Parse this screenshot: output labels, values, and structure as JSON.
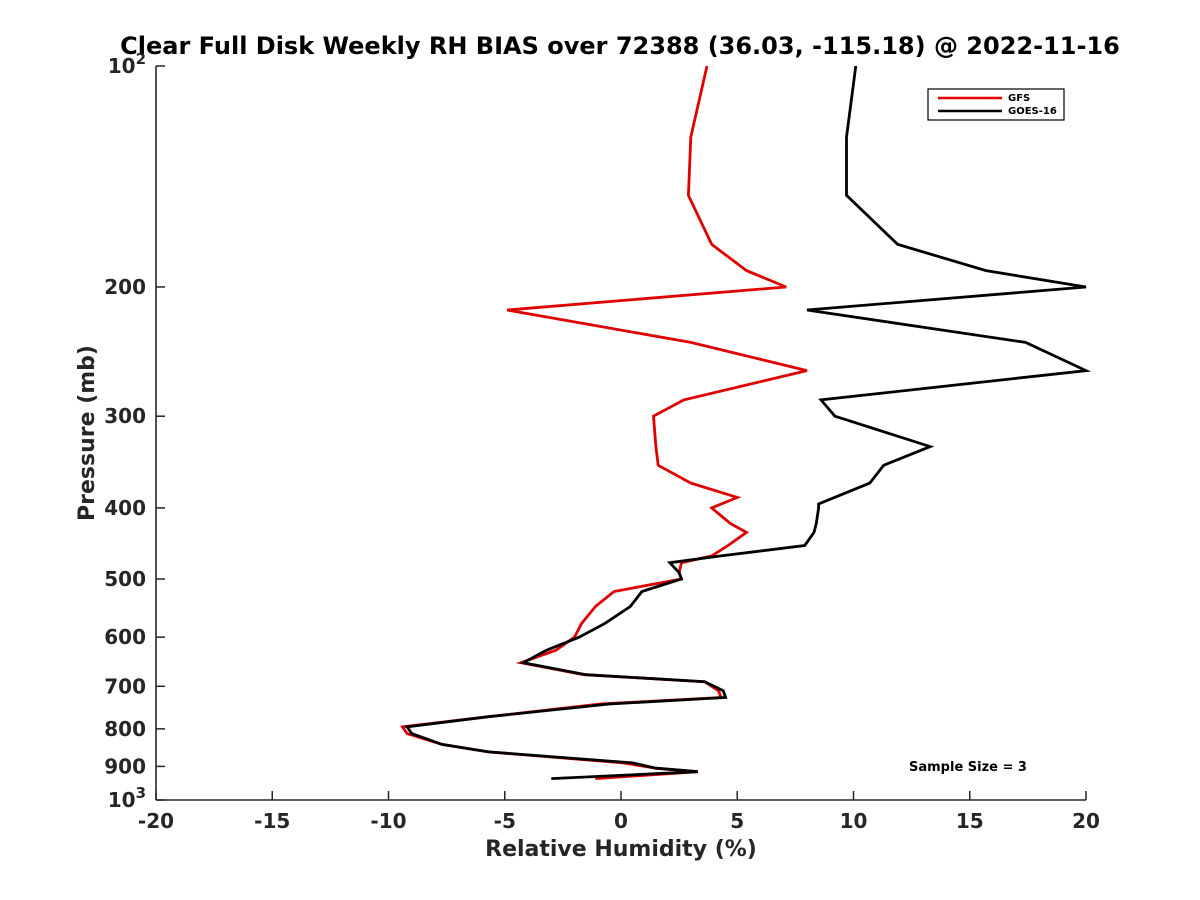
{
  "chart_data": {
    "type": "line",
    "title": "Clear Full Disk Weekly RH BIAS over 72388 (36.03, -115.18) @ 2022-11-16",
    "xlabel": "Relative Humidity (%)",
    "ylabel": "Pressure (mb)",
    "xlim": [
      -20,
      20
    ],
    "ylim": [
      100,
      1000
    ],
    "y_scale": "log",
    "y_reversed": true,
    "grid": false,
    "legend_position": "top-right",
    "x_ticks": [
      -20,
      -15,
      -10,
      -5,
      0,
      5,
      10,
      15,
      20
    ],
    "x_tick_labels": [
      "-20",
      "-15",
      "-10",
      "-5",
      "0",
      "5",
      "10",
      "15",
      "20"
    ],
    "y_ticks": [
      {
        "value": 100,
        "base": "10",
        "exp": "2"
      },
      {
        "value": 200,
        "label": "200"
      },
      {
        "value": 300,
        "label": "300"
      },
      {
        "value": 400,
        "label": "400"
      },
      {
        "value": 500,
        "label": "500"
      },
      {
        "value": 600,
        "label": "600"
      },
      {
        "value": 700,
        "label": "700"
      },
      {
        "value": 800,
        "label": "800"
      },
      {
        "value": 900,
        "label": "900"
      },
      {
        "value": 1000,
        "base": "10",
        "exp": "3"
      }
    ],
    "series": [
      {
        "name": "GFS",
        "color": "#e00000",
        "points": [
          [
            3.7,
            100
          ],
          [
            3.0,
            125
          ],
          [
            2.9,
            150
          ],
          [
            3.9,
            175
          ],
          [
            5.4,
            190
          ],
          [
            7.1,
            200
          ],
          [
            -4.9,
            215
          ],
          [
            3.0,
            238
          ],
          [
            8.0,
            260
          ],
          [
            2.7,
            285
          ],
          [
            1.4,
            300
          ],
          [
            1.5,
            330
          ],
          [
            1.6,
            350
          ],
          [
            3.0,
            370
          ],
          [
            5.0,
            387
          ],
          [
            3.9,
            400
          ],
          [
            4.7,
            420
          ],
          [
            5.4,
            432
          ],
          [
            4.6,
            450
          ],
          [
            3.9,
            465
          ],
          [
            2.6,
            475
          ],
          [
            2.5,
            490
          ],
          [
            2.6,
            500
          ],
          [
            -0.3,
            520
          ],
          [
            -1.1,
            545
          ],
          [
            -1.7,
            575
          ],
          [
            -2.0,
            600
          ],
          [
            -2.8,
            625
          ],
          [
            -4.3,
            650
          ],
          [
            -1.6,
            675
          ],
          [
            3.6,
            690
          ],
          [
            4.2,
            710
          ],
          [
            4.3,
            725
          ],
          [
            -0.9,
            740
          ],
          [
            -5.7,
            770
          ],
          [
            -9.4,
            795
          ],
          [
            -9.2,
            812
          ],
          [
            -7.7,
            840
          ],
          [
            -5.7,
            860
          ],
          [
            0.1,
            890
          ],
          [
            1.5,
            905
          ],
          [
            3.3,
            915
          ],
          [
            -1.1,
            935
          ]
        ]
      },
      {
        "name": "GOES-16",
        "color": "#000000",
        "points": [
          [
            10.1,
            100
          ],
          [
            9.7,
            125
          ],
          [
            9.7,
            150
          ],
          [
            11.9,
            175
          ],
          [
            15.7,
            190
          ],
          [
            20.0,
            200
          ],
          [
            8.0,
            215
          ],
          [
            17.4,
            238
          ],
          [
            20.0,
            260
          ],
          [
            8.6,
            285
          ],
          [
            9.2,
            300
          ],
          [
            13.3,
            330
          ],
          [
            11.3,
            350
          ],
          [
            10.7,
            370
          ],
          [
            8.5,
            395
          ],
          [
            8.5,
            400
          ],
          [
            8.4,
            420
          ],
          [
            8.3,
            432
          ],
          [
            7.9,
            450
          ],
          [
            4.3,
            465
          ],
          [
            2.1,
            475
          ],
          [
            2.5,
            490
          ],
          [
            2.6,
            500
          ],
          [
            0.9,
            520
          ],
          [
            0.4,
            545
          ],
          [
            -0.7,
            575
          ],
          [
            -1.8,
            600
          ],
          [
            -3.2,
            625
          ],
          [
            -4.2,
            650
          ],
          [
            -1.5,
            675
          ],
          [
            3.6,
            690
          ],
          [
            4.4,
            710
          ],
          [
            4.5,
            725
          ],
          [
            -0.5,
            740
          ],
          [
            -5.7,
            770
          ],
          [
            -9.2,
            795
          ],
          [
            -9.0,
            812
          ],
          [
            -7.7,
            840
          ],
          [
            -5.7,
            860
          ],
          [
            0.5,
            890
          ],
          [
            1.5,
            905
          ],
          [
            3.3,
            915
          ],
          [
            -3.0,
            935
          ]
        ]
      }
    ],
    "annotations": [
      {
        "text": "Sample Size = 3",
        "x": 15,
        "y": 905
      }
    ]
  }
}
